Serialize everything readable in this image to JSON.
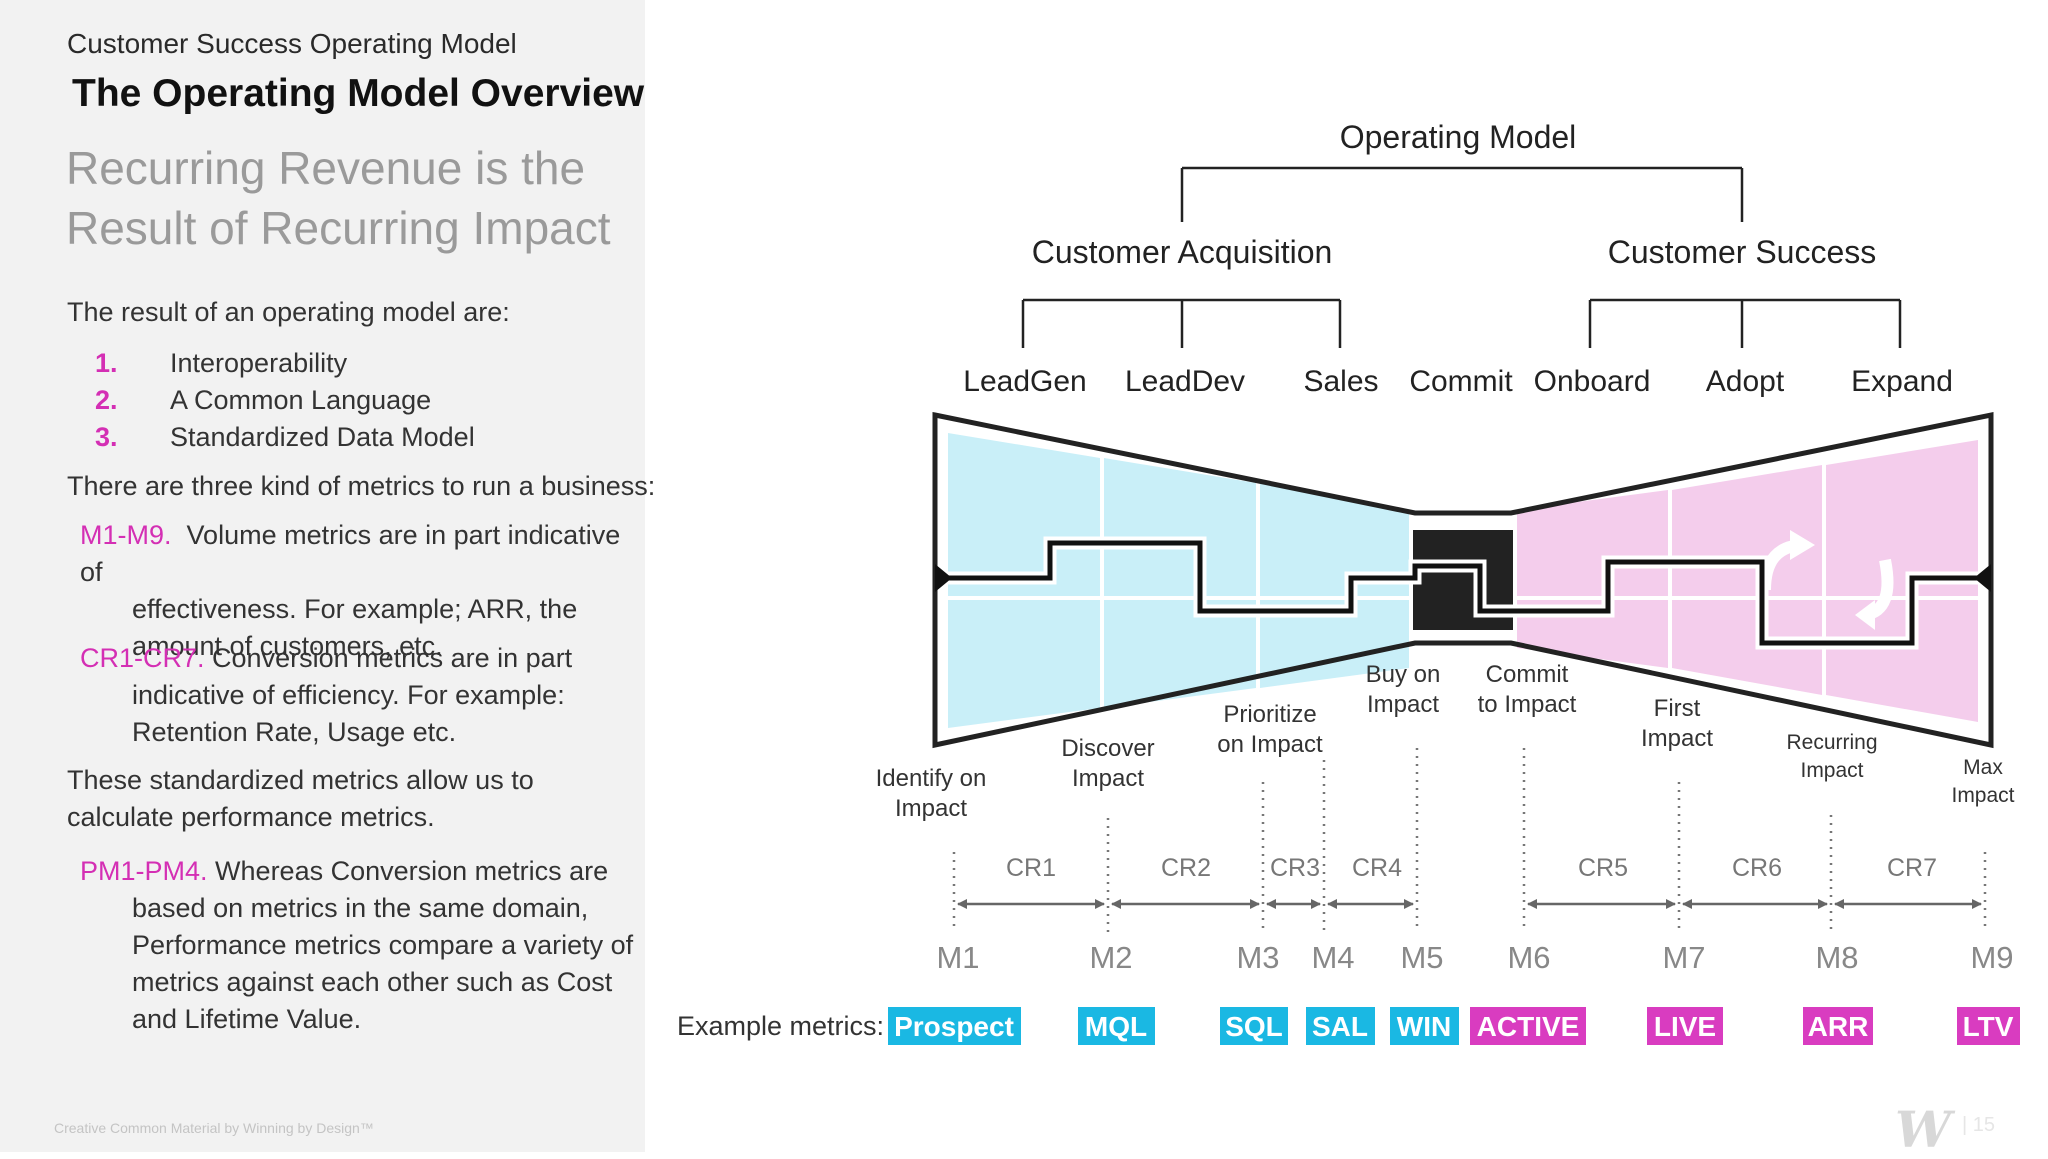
{
  "left": {
    "eyebrow": "Customer Success Operating Model",
    "title": "The Operating Model Overview",
    "headline": "Recurring Revenue is the Result of Recurring Impact",
    "intro": "The result of an operating model are:",
    "list": [
      {
        "num": "1.",
        "text": "Interoperability"
      },
      {
        "num": "2.",
        "text": "A Common Language"
      },
      {
        "num": "3.",
        "text": "Standardized Data Model"
      }
    ],
    "kinds_text": "There are three kind of metrics to run a business:",
    "volume": {
      "lead": "M1-M9.",
      "first": "Volume metrics are in part indicative of",
      "rest": [
        "effectiveness. For example; ARR, the",
        "amount of customers, etc."
      ]
    },
    "conversion": {
      "lead": "CR1-CR7.",
      "first": "Conversion metrics are in part",
      "rest": [
        "indicative of efficiency. For example:",
        "Retention Rate, Usage etc."
      ]
    },
    "standardized": "These standardized metrics allow us to calculate performance metrics.",
    "performance": {
      "lead": "PM1-PM4.",
      "first": "Whereas Conversion metrics are",
      "rest": [
        "based on metrics in the same domain,",
        "Performance metrics compare a variety of",
        "metrics against each other such as Cost",
        "and Lifetime Value."
      ]
    },
    "credit": "Creative Common Material by Winning by Design™"
  },
  "footer": {
    "logo": "W",
    "page": "| 15"
  },
  "diagram": {
    "root": "Operating Model",
    "branches": [
      "Customer Acquisition",
      "Customer Success"
    ],
    "stages": [
      "LeadGen",
      "LeadDev",
      "Sales",
      "Commit",
      "Onboard",
      "Adopt",
      "Expand"
    ],
    "impact_labels": [
      [
        "Identify on",
        "Impact"
      ],
      [
        "Discover",
        "Impact"
      ],
      [
        "Prioritize",
        "on Impact"
      ],
      [
        "Buy on",
        "Impact"
      ],
      [
        "Commit",
        "to Impact"
      ],
      [
        "First",
        "Impact"
      ],
      [
        "Recurring",
        "Impact"
      ],
      [
        "Max",
        "Impact"
      ]
    ],
    "conversions": [
      "CR1",
      "CR2",
      "CR3",
      "CR4",
      "CR5",
      "CR6",
      "CR7"
    ],
    "metrics": [
      "M1",
      "M2",
      "M3",
      "M4",
      "M5",
      "M6",
      "M7",
      "M8",
      "M9"
    ],
    "example_label": "Example metrics:",
    "example_metrics": [
      "Prospect",
      "MQL",
      "SQL",
      "SAL",
      "WIN",
      "ACTIVE",
      "LIVE",
      "ARR",
      "LTV"
    ],
    "colors": {
      "acquisition": "#1ab8e3",
      "success": "#d93cc0",
      "acq_fill": "#c9eff8",
      "success_fill": "#f4cdec",
      "commit": "#222222"
    }
  }
}
